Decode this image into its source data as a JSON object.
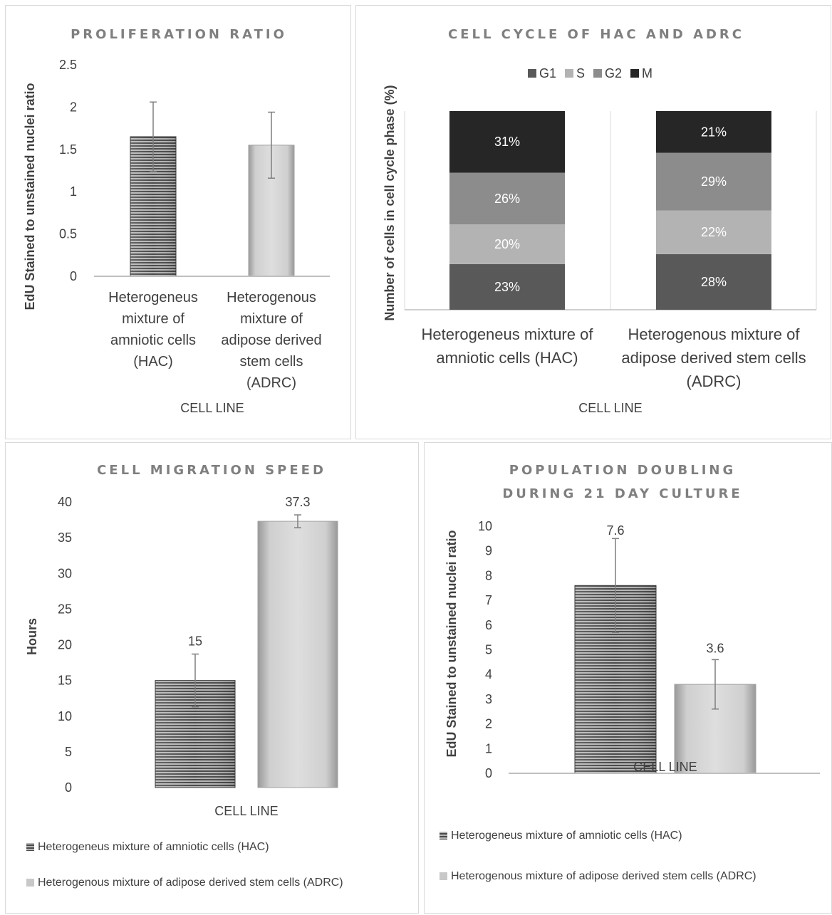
{
  "chart_data": [
    {
      "type": "bar",
      "title": "PROLIFERATION RATIO",
      "xlabel": "CELL LINE",
      "ylabel": "EdU Stained to unstained nuclei ratio",
      "ylim": [
        0,
        2.5
      ],
      "yticks": [
        "0",
        "0.5",
        "1",
        "1.5",
        "2",
        "2.5"
      ],
      "categories": [
        "Heterogeneus mixture of amniotic cells (HAC)",
        "Heterogenous mixture of adipose derived stem cells (ADRC)"
      ],
      "category_lines": [
        [
          "Heterogeneus",
          "mixture of",
          "amniotic cells",
          "(HAC)"
        ],
        [
          "Heterogenous",
          "mixture of",
          "adipose derived",
          "stem cells",
          "(ADRC)"
        ]
      ],
      "values": [
        1.65,
        1.55
      ],
      "error": [
        0.41,
        0.39
      ],
      "grid": false
    },
    {
      "type": "bar",
      "stacked": true,
      "title": "CELL CYCLE OF HAC AND ADRC",
      "xlabel": "CELL LINE",
      "ylabel": "Number of cells in cell cycle phase (%)",
      "ylim": [
        0,
        100
      ],
      "legend_position": "top",
      "categories": [
        "Heterogeneus mixture of amniotic cells (HAC)",
        "Heterogenous mixture of adipose derived stem cells (ADRC)"
      ],
      "category_lines": [
        [
          "Heterogeneus mixture of",
          "amniotic cells (HAC)"
        ],
        [
          "Heterogenous mixture of",
          "adipose derived stem cells",
          "(ADRC)"
        ]
      ],
      "series": [
        {
          "name": "G1",
          "values": [
            23,
            28
          ],
          "labels": [
            "23%",
            "28%"
          ],
          "color": "#595959"
        },
        {
          "name": "S",
          "values": [
            20,
            22
          ],
          "labels": [
            "20%",
            "22%"
          ],
          "color": "#b3b3b3"
        },
        {
          "name": "G2",
          "values": [
            26,
            29
          ],
          "labels": [
            "26%",
            "29%"
          ],
          "color": "#8c8c8c"
        },
        {
          "name": "M",
          "values": [
            31,
            21
          ],
          "labels": [
            "31%",
            "21%"
          ],
          "color": "#262626"
        }
      ]
    },
    {
      "type": "bar",
      "title": "CELL MIGRATION SPEED",
      "xlabel": "CELL LINE",
      "ylabel": "Hours",
      "ylim": [
        0,
        40
      ],
      "yticks": [
        "0",
        "5",
        "10",
        "15",
        "20",
        "25",
        "30",
        "35",
        "40"
      ],
      "legend_position": "bottom",
      "series": [
        {
          "name": "Heterogeneus mixture of amniotic cells (HAC)",
          "values": [
            15
          ],
          "label": "15",
          "error": 3.7
        },
        {
          "name": "Heterogenous mixture of adipose derived stem cells (ADRC)",
          "values": [
            37.3
          ],
          "label": "37.3",
          "error": 0.9
        }
      ],
      "grid": false
    },
    {
      "type": "bar",
      "title": "POPULATION DOUBLING DURING 21 DAY CULTURE",
      "title_lines": [
        "POPULATION DOUBLING",
        "DURING 21 DAY CULTURE"
      ],
      "xlabel": "CELL LINE",
      "ylabel": "EdU Stained to unstained nuclei ratio",
      "ylim": [
        0,
        10
      ],
      "yticks": [
        "0",
        "1",
        "2",
        "3",
        "4",
        "5",
        "6",
        "7",
        "8",
        "9",
        "10"
      ],
      "legend_position": "bottom",
      "series": [
        {
          "name": "Heterogeneus mixture of amniotic cells (HAC)",
          "values": [
            7.6
          ],
          "label": "7.6",
          "error": 1.9
        },
        {
          "name": "Heterogenous mixture of adipose derived stem cells (ADRC)",
          "values": [
            3.6
          ],
          "label": "3.6",
          "error": 1.0
        }
      ],
      "grid": false
    }
  ]
}
